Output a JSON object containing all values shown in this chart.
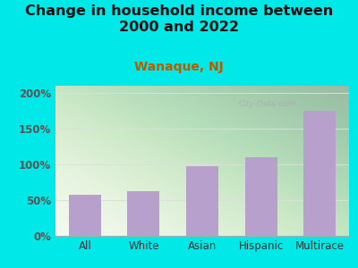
{
  "title": "Change in household income between\n2000 and 2022",
  "subtitle": "Wanaque, NJ",
  "categories": [
    "All",
    "White",
    "Asian",
    "Hispanic",
    "Multirace"
  ],
  "values": [
    57,
    62,
    97,
    110,
    175
  ],
  "bar_color": "#b8a0cc",
  "title_fontsize": 11.5,
  "subtitle_fontsize": 10,
  "subtitle_color": "#b85c00",
  "title_color": "#111111",
  "bg_outer": "#00e8e8",
  "bg_plot": "#f2f8ec",
  "ylim": [
    0,
    210
  ],
  "yticks": [
    0,
    50,
    100,
    150,
    200
  ],
  "ytick_labels": [
    "0%",
    "50%",
    "100%",
    "150%",
    "200%"
  ],
  "ytick_color": "#555555",
  "grid_color": "#dddddd",
  "bar_width": 0.55,
  "xlabel_fontsize": 8.5,
  "ylabel_fontsize": 8.5,
  "watermark": "City-Data.com"
}
